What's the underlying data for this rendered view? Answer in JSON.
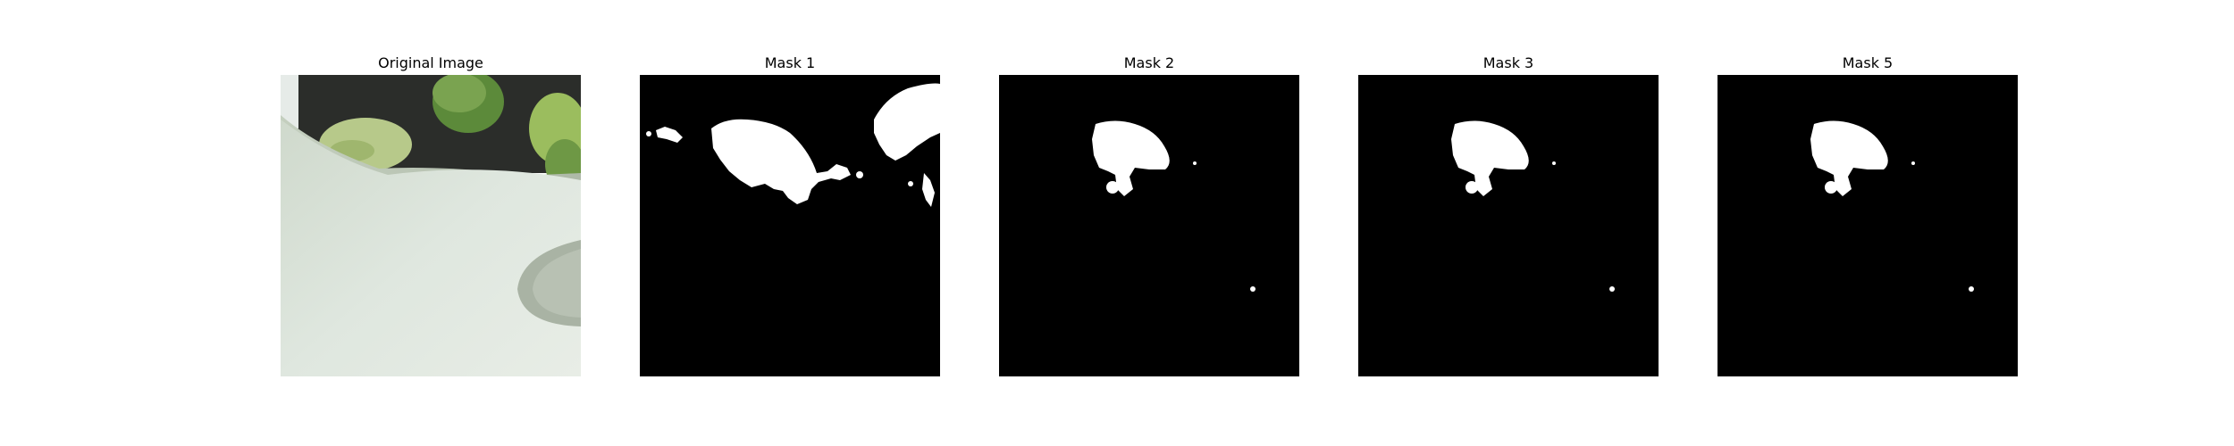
{
  "figure": {
    "panels": [
      {
        "title": "Original Image",
        "kind": "photo"
      },
      {
        "title": "Mask 1",
        "kind": "mask",
        "variant": "mask1"
      },
      {
        "title": "Mask 2",
        "kind": "mask",
        "variant": "mask2"
      },
      {
        "title": "Mask 3",
        "kind": "mask",
        "variant": "mask3"
      },
      {
        "title": "Mask 5",
        "kind": "mask",
        "variant": "mask5"
      }
    ],
    "colors": {
      "background": "#ffffff",
      "mask_bg": "#000000",
      "mask_fg": "#ffffff",
      "leaf_light": "#b7c98a",
      "leaf_dark": "#5c8a3a",
      "pot_light": "#dfe7df",
      "pot_shadow": "#a9b3a4",
      "dark_bg": "#2b2d2a"
    }
  }
}
